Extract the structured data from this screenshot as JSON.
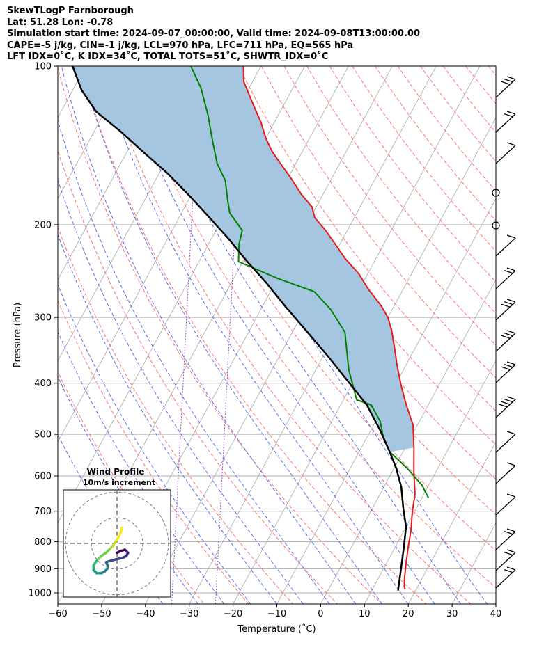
{
  "header": {
    "line1": "SkewTLogP Farnborough",
    "line2": "Lat: 51.28   Lon: -0.78",
    "line3": "Simulation start time: 2024-09-07_00:00:00, Valid time: 2024-09-08T13:00:00.00",
    "line4": "CAPE=-5 j/kg, CIN=-1 j/kg, LCL=970 hPa, LFC=711 hPa, EQ=565 hPa",
    "line5": "LFT IDX=0˚C, K IDX=34˚C, TOTAL TOTS=51˚C, SHWTR_IDX=0˚C"
  },
  "colors": {
    "temperature": "#e41a1c",
    "dewpoint": "#008000",
    "parcel": "#000000",
    "cape_fill": "#a4c6e0",
    "dry_adiabat": "#ff6f6f",
    "moist_adiabat": "#5a6ef0",
    "mixing_ratio": "#9b4fc7",
    "isotherm": "#b0b0b0"
  },
  "chart_data": [
    {
      "type": "line",
      "title": "SkewTLogP Farnborough",
      "xlabel": "Temperature (˚C)",
      "ylabel": "Pressure (hPa)",
      "xlim": [
        -60,
        40
      ],
      "ylim": [
        1050,
        100
      ],
      "yscale": "log",
      "grid": true,
      "xticks": [
        "−60",
        "−50",
        "−40",
        "−30",
        "−20",
        "−10",
        "0",
        "10",
        "20",
        "30",
        "40"
      ],
      "yticks": [
        "100",
        "200",
        "300",
        "400",
        "500",
        "600",
        "700",
        "800",
        "900",
        "1000"
      ],
      "series": [
        {
          "name": "Temperature",
          "points": [
            [
              17.5,
              985
            ],
            [
              17,
              975
            ],
            [
              16,
              940
            ],
            [
              14.5,
              880
            ],
            [
              13,
              820
            ],
            [
              11.5,
              760
            ],
            [
              9.5,
              700
            ],
            [
              8,
              650
            ],
            [
              5,
              590
            ],
            [
              2,
              530
            ],
            [
              -1,
              480
            ],
            [
              -5,
              440
            ],
            [
              -8.5,
              405
            ],
            [
              -12,
              370
            ],
            [
              -14.5,
              345
            ],
            [
              -17.5,
              318
            ],
            [
              -20,
              300
            ],
            [
              -23,
              285
            ],
            [
              -28,
              265
            ],
            [
              -32,
              248
            ],
            [
              -37,
              232
            ],
            [
              -41,
              218
            ],
            [
              -45,
              205
            ],
            [
              -49,
              194
            ],
            [
              -51,
              185
            ],
            [
              -55,
              175
            ],
            [
              -59,
              164
            ],
            [
              -64,
              152
            ],
            [
              -67,
              145
            ],
            [
              -70,
              137
            ],
            [
              -73,
              128
            ],
            [
              -78,
              116
            ],
            [
              -82,
              107
            ],
            [
              -84,
              100
            ]
          ]
        },
        {
          "name": "Dewpoint",
          "points": [
            [
              11.5,
              660
            ],
            [
              8.5,
              625
            ],
            [
              3,
              580
            ],
            [
              -3,
              540
            ],
            [
              -6,
              510
            ],
            [
              -9,
              472
            ],
            [
              -13,
              440
            ],
            [
              -17,
              430
            ],
            [
              -19.5,
              405
            ],
            [
              -22.5,
              377
            ],
            [
              -25,
              350
            ],
            [
              -28,
              320
            ],
            [
              -34,
              290
            ],
            [
              -40,
              268
            ],
            [
              -50,
              253
            ],
            [
              -61,
              235
            ],
            [
              -63,
              218
            ],
            [
              -64,
              205
            ],
            [
              -69,
              190
            ],
            [
              -71,
              180
            ],
            [
              -74,
              165
            ],
            [
              -78,
              153
            ],
            [
              -82,
              138
            ],
            [
              -86,
              124
            ],
            [
              -91,
              110
            ],
            [
              -96,
              100
            ]
          ]
        },
        {
          "name": "Parcel",
          "points": [
            [
              16,
              990
            ],
            [
              14,
              900
            ],
            [
              12,
              820
            ],
            [
              10,
              750
            ],
            [
              7,
              690
            ],
            [
              4,
              630
            ],
            [
              0.5,
              580
            ],
            [
              -3,
              540
            ],
            [
              -8,
              490
            ],
            [
              -14,
              440
            ],
            [
              -21,
              398
            ],
            [
              -29,
              355
            ],
            [
              -37,
              318
            ],
            [
              -45,
              285
            ],
            [
              -52,
              258
            ],
            [
              -59,
              235
            ],
            [
              -66,
              213
            ],
            [
              -73,
              194
            ],
            [
              -80,
              177
            ],
            [
              -88,
              160
            ],
            [
              -96,
              146
            ],
            [
              -104,
              133
            ],
            [
              -112,
              122
            ],
            [
              -118,
              111
            ],
            [
              -123,
              100
            ]
          ]
        }
      ],
      "annotations": [
        "Wind barbs at right margin",
        "CAPE region shaded between parcel and temperature"
      ]
    },
    {
      "type": "scatter",
      "title": "Wind Profile",
      "subtitle": "10m/s increment",
      "ring_step_ms": 10,
      "points": [
        [
          1.5,
          5
        ],
        [
          1.2,
          3.5
        ],
        [
          0.5,
          2
        ],
        [
          -0.5,
          0.5
        ],
        [
          -1.5,
          -1
        ],
        [
          -2.5,
          -2
        ],
        [
          -3.5,
          -3
        ],
        [
          -5,
          -4
        ],
        [
          -6.5,
          -5.5
        ],
        [
          -7.5,
          -7
        ],
        [
          -7.5,
          -8.5
        ],
        [
          -6.5,
          -9.5
        ],
        [
          -5,
          -9.5
        ],
        [
          -4,
          -9
        ],
        [
          -3,
          -8
        ],
        [
          -3,
          -7
        ],
        [
          -3.5,
          -6
        ],
        [
          -2,
          -5.5
        ],
        [
          0,
          -5
        ],
        [
          2,
          -4.5
        ],
        [
          3,
          -4
        ],
        [
          3.5,
          -3
        ],
        [
          2.5,
          -2
        ],
        [
          1,
          -2.5
        ],
        [
          0,
          -3
        ]
      ]
    }
  ]
}
